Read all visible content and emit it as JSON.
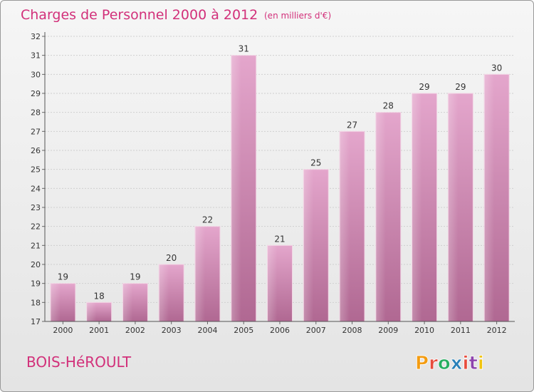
{
  "chart_data": {
    "type": "bar",
    "title": "Charges de Personnel 2000 à 2012",
    "subtitle": "(en milliers d'€)",
    "categories": [
      "2000",
      "2001",
      "2002",
      "2003",
      "2004",
      "2005",
      "2006",
      "2007",
      "2008",
      "2009",
      "2010",
      "2011",
      "2012"
    ],
    "values": [
      19,
      18,
      19,
      20,
      22,
      31,
      21,
      25,
      27,
      28,
      29,
      29,
      30
    ],
    "ylim": [
      17,
      32
    ],
    "yticks": [
      17,
      18,
      19,
      20,
      21,
      22,
      23,
      24,
      25,
      26,
      27,
      28,
      29,
      30,
      31,
      32
    ],
    "grid": true,
    "bar_color": "#d890b8"
  },
  "footer": {
    "town": "BOIS-HéROULT",
    "logo": "Proxiti"
  },
  "colors": {
    "accent": "#d2307a",
    "logo_letters": [
      "#f39c12",
      "#e74c3c",
      "#27ae60",
      "#2980b9",
      "#e74c3c",
      "#8e44ad",
      "#f1c40f"
    ]
  }
}
